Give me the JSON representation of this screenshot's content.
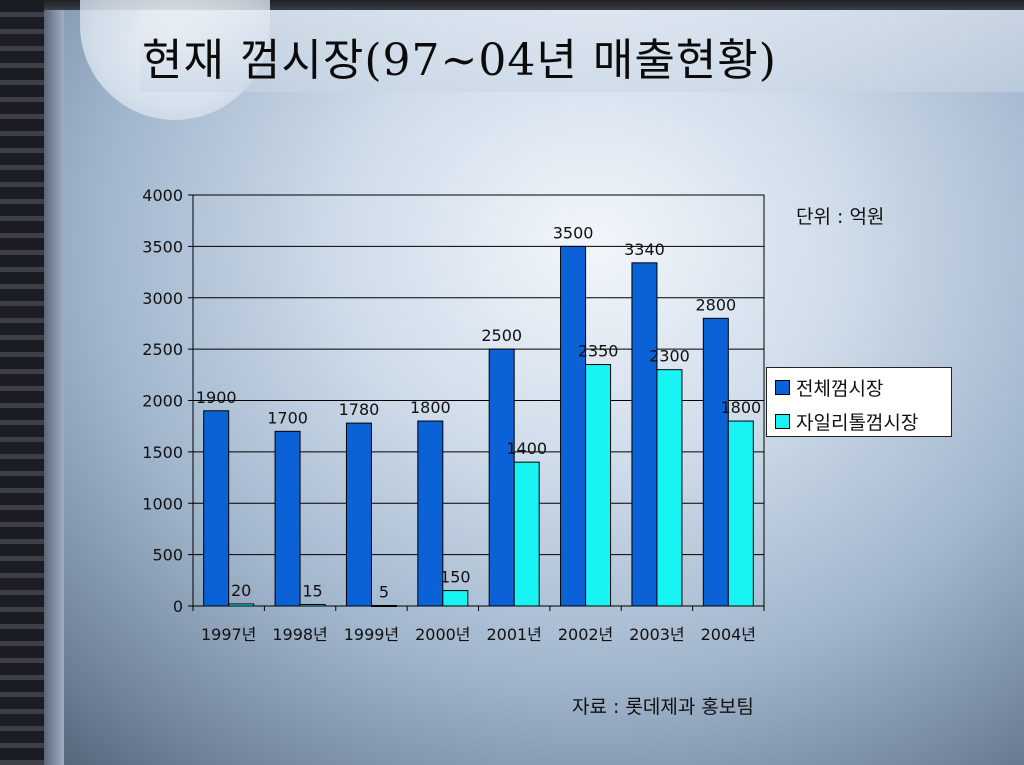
{
  "slide": {
    "title": "현재 껌시장(97~04년 매출현황)",
    "unit_label": "단위 : 억원",
    "source_label": "자료 : 롯데제과 홍보팀"
  },
  "chart_data": {
    "type": "bar",
    "title": "",
    "xlabel": "",
    "ylabel": "",
    "categories": [
      "1997년",
      "1998년",
      "1999년",
      "2000년",
      "2001년",
      "2002년",
      "2003년",
      "2004년"
    ],
    "series": [
      {
        "name": "전체껌시장",
        "values": [
          1900,
          1700,
          1780,
          1800,
          2500,
          3500,
          3340,
          2800
        ],
        "color": "#0b62d6"
      },
      {
        "name": "자일리톨껌시장",
        "values": [
          20,
          15,
          5,
          150,
          1400,
          2350,
          2300,
          1800
        ],
        "color": "#18f4f4"
      }
    ],
    "data_labels": [
      [
        "1900",
        "1700",
        "1780",
        "1800",
        "2500",
        "3500",
        "3340",
        "2800"
      ],
      [
        "20",
        "15",
        "5",
        "150",
        "1400",
        "2350",
        "2300",
        "1800"
      ]
    ],
    "ylim": [
      0,
      4000
    ],
    "yticks": [
      "0",
      "500",
      "1000",
      "1500",
      "2000",
      "2500",
      "3000",
      "3500",
      "4000"
    ],
    "grid": true,
    "legend_position": "right"
  }
}
